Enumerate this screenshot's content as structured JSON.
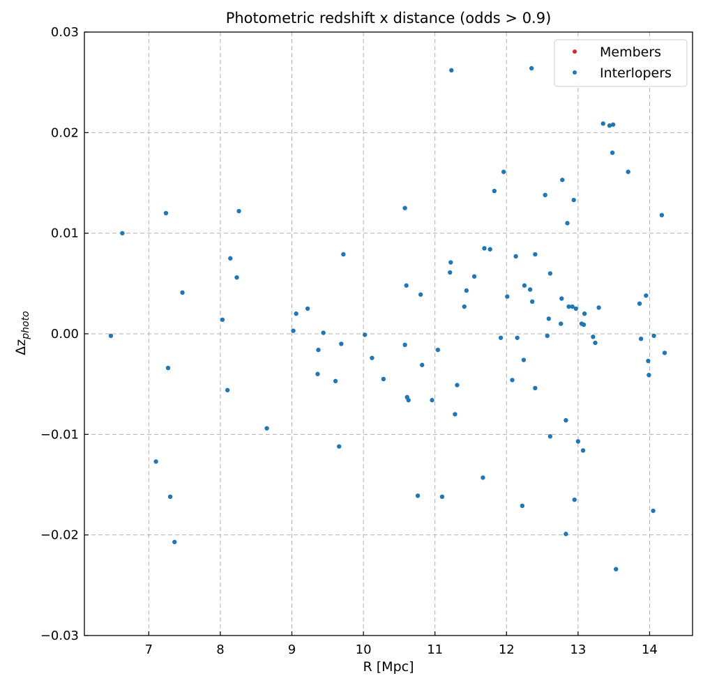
{
  "chart_data": {
    "type": "scatter",
    "title": "Photometric redshift x distance (odds > 0.9)",
    "xlabel": "R [Mpc]",
    "ylabel": "Δz",
    "ylabel_sub": "photo",
    "xlim": [
      6.1,
      14.6
    ],
    "ylim": [
      -0.03,
      0.03
    ],
    "x_ticks": [
      7,
      8,
      9,
      10,
      11,
      12,
      13,
      14
    ],
    "x_tick_labels": [
      "7",
      "8",
      "9",
      "10",
      "11",
      "12",
      "13",
      "14"
    ],
    "y_ticks": [
      -0.03,
      -0.02,
      -0.01,
      0.0,
      0.01,
      0.02,
      0.03
    ],
    "y_tick_labels": [
      "−0.03",
      "−0.02",
      "−0.01",
      "0.00",
      "0.01",
      "0.02",
      "0.03"
    ],
    "grid": true,
    "legend_position": "top-right",
    "series": [
      {
        "name": "Members",
        "color": "#d62728",
        "points": []
      },
      {
        "name": "Interlopers",
        "color": "#1f77b4",
        "points": [
          [
            6.47,
            -0.0002
          ],
          [
            6.63,
            0.01
          ],
          [
            7.1,
            -0.0127
          ],
          [
            7.24,
            0.012
          ],
          [
            7.27,
            -0.0034
          ],
          [
            7.3,
            -0.0162
          ],
          [
            7.36,
            -0.0207
          ],
          [
            7.47,
            0.0041
          ],
          [
            8.03,
            0.0014
          ],
          [
            8.1,
            -0.0056
          ],
          [
            8.14,
            0.0075
          ],
          [
            8.23,
            0.0056
          ],
          [
            8.26,
            0.0122
          ],
          [
            8.65,
            -0.0094
          ],
          [
            9.02,
            0.0003
          ],
          [
            9.06,
            0.002
          ],
          [
            9.22,
            0.0025
          ],
          [
            9.36,
            -0.004
          ],
          [
            9.37,
            -0.0016
          ],
          [
            9.44,
            0.0001
          ],
          [
            9.61,
            -0.0047
          ],
          [
            9.66,
            -0.0112
          ],
          [
            9.69,
            -0.001
          ],
          [
            9.72,
            0.0079
          ],
          [
            10.02,
            -0.0001
          ],
          [
            10.12,
            -0.0024
          ],
          [
            10.28,
            -0.0045
          ],
          [
            10.58,
            0.0125
          ],
          [
            10.58,
            -0.0011
          ],
          [
            10.6,
            0.0048
          ],
          [
            10.61,
            -0.0063
          ],
          [
            10.63,
            -0.0066
          ],
          [
            10.76,
            -0.0161
          ],
          [
            10.8,
            0.0039
          ],
          [
            10.82,
            -0.0031
          ],
          [
            10.96,
            -0.0066
          ],
          [
            11.04,
            -0.0016
          ],
          [
            11.1,
            -0.0162
          ],
          [
            11.21,
            0.0061
          ],
          [
            11.22,
            0.0071
          ],
          [
            11.23,
            0.0262
          ],
          [
            11.28,
            -0.008
          ],
          [
            11.31,
            -0.0051
          ],
          [
            11.41,
            0.0027
          ],
          [
            11.44,
            0.0043
          ],
          [
            11.55,
            0.0057
          ],
          [
            11.67,
            -0.0143
          ],
          [
            11.69,
            0.0085
          ],
          [
            11.77,
            0.0084
          ],
          [
            11.83,
            0.0142
          ],
          [
            11.92,
            -0.0004
          ],
          [
            11.96,
            0.0161
          ],
          [
            12.01,
            0.0037
          ],
          [
            12.08,
            -0.0046
          ],
          [
            12.13,
            0.0077
          ],
          [
            12.15,
            -0.0004
          ],
          [
            12.22,
            -0.0171
          ],
          [
            12.24,
            -0.0026
          ],
          [
            12.25,
            0.0048
          ],
          [
            12.33,
            0.0044
          ],
          [
            12.35,
            0.0264
          ],
          [
            12.36,
            0.0032
          ],
          [
            12.4,
            0.0079
          ],
          [
            12.4,
            -0.0054
          ],
          [
            12.54,
            0.0138
          ],
          [
            12.57,
            -0.0002
          ],
          [
            12.59,
            0.0015
          ],
          [
            12.61,
            0.006
          ],
          [
            12.61,
            -0.0102
          ],
          [
            12.76,
            0.001
          ],
          [
            12.77,
            0.0035
          ],
          [
            12.78,
            0.0153
          ],
          [
            12.83,
            -0.0086
          ],
          [
            12.83,
            -0.0199
          ],
          [
            12.85,
            0.011
          ],
          [
            12.87,
            0.0027
          ],
          [
            12.92,
            0.0027
          ],
          [
            12.94,
            0.0133
          ],
          [
            12.95,
            -0.0165
          ],
          [
            12.97,
            0.0025
          ],
          [
            13.0,
            -0.0107
          ],
          [
            13.05,
            0.001
          ],
          [
            13.07,
            -0.0116
          ],
          [
            13.08,
            0.0009
          ],
          [
            13.09,
            0.002
          ],
          [
            13.21,
            -0.0003
          ],
          [
            13.24,
            -0.0009
          ],
          [
            13.29,
            0.0026
          ],
          [
            13.35,
            0.0209
          ],
          [
            13.44,
            0.0207
          ],
          [
            13.48,
            0.018
          ],
          [
            13.49,
            0.0208
          ],
          [
            13.53,
            -0.0234
          ],
          [
            13.7,
            0.0161
          ],
          [
            13.86,
            0.003
          ],
          [
            13.88,
            -0.0005
          ],
          [
            13.95,
            0.0038
          ],
          [
            13.98,
            -0.0027
          ],
          [
            13.99,
            -0.0041
          ],
          [
            14.05,
            -0.0176
          ],
          [
            14.06,
            -0.0002
          ],
          [
            14.17,
            0.0118
          ],
          [
            14.21,
            -0.0019
          ]
        ]
      }
    ]
  }
}
